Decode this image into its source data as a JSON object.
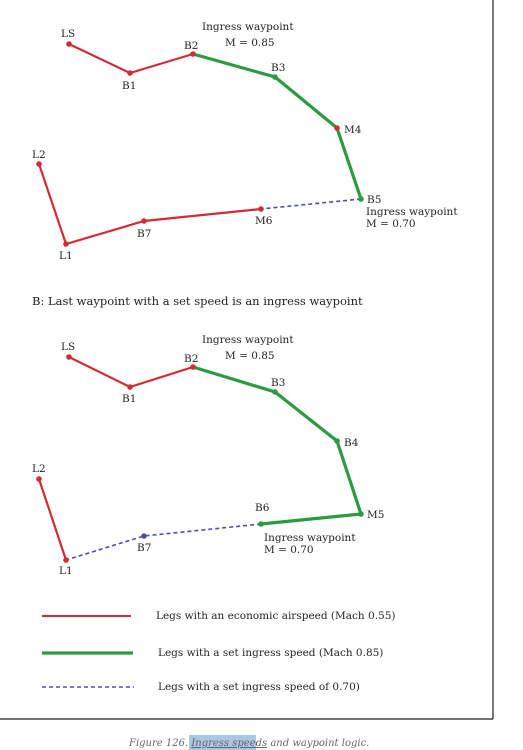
{
  "colors": {
    "economic": "#d42a35",
    "ingress": "#2b9b3f",
    "ingress_070": "#4a4fa8",
    "frame": "#222222",
    "caption_highlight": "#a9c6e4"
  },
  "diagram_a": {
    "speed_note_top": {
      "line1": "Ingress waypoint",
      "line2": "M = 0.85"
    },
    "speed_note_bottom": {
      "line1": "Ingress waypoint",
      "line2": "M = 0.70"
    },
    "waypoints": [
      {
        "id": "LS",
        "label": "LS"
      },
      {
        "id": "B1",
        "label": "B1"
      },
      {
        "id": "B2",
        "label": "B2"
      },
      {
        "id": "B3",
        "label": "B3"
      },
      {
        "id": "M4",
        "label": "M4"
      },
      {
        "id": "B5",
        "label": "B5"
      },
      {
        "id": "M6",
        "label": "M6"
      },
      {
        "id": "B7",
        "label": "B7"
      },
      {
        "id": "L1",
        "label": "L1"
      },
      {
        "id": "L2",
        "label": "L2"
      }
    ]
  },
  "section_b_heading": "B: Last waypoint with a set speed is an ingress waypoint",
  "diagram_b": {
    "speed_note_top": {
      "line1": "Ingress waypoint",
      "line2": "M = 0.85"
    },
    "speed_note_bottom": {
      "line1": "Ingress waypoint",
      "line2": "M = 0.70"
    },
    "waypoints": [
      {
        "id": "LS",
        "label": "LS"
      },
      {
        "id": "B1",
        "label": "B1"
      },
      {
        "id": "B2",
        "label": "B2"
      },
      {
        "id": "B3",
        "label": "B3"
      },
      {
        "id": "B4",
        "label": "B4"
      },
      {
        "id": "M5",
        "label": "M5"
      },
      {
        "id": "B6",
        "label": "B6"
      },
      {
        "id": "B7",
        "label": "B7"
      },
      {
        "id": "L1",
        "label": "L1"
      },
      {
        "id": "L2",
        "label": "L2"
      }
    ]
  },
  "legend": [
    {
      "style": "economic",
      "text": "Legs with an economic airspeed (Mach 0.55)"
    },
    {
      "style": "ingress",
      "text": "Legs with a set ingress speed (Mach 0.85)"
    },
    {
      "style": "ingress_070",
      "text": "Legs with a set ingress speed of 0.70)"
    }
  ],
  "caption": {
    "prefix": "Figure 126.",
    "highlight": "Ingress speeds",
    "suffix": "and waypoint logic."
  }
}
